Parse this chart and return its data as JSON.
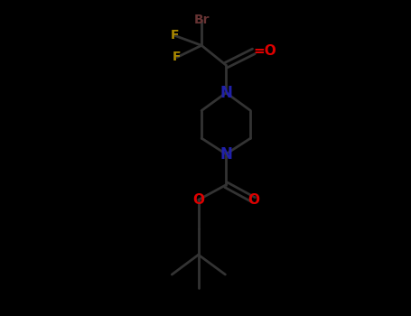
{
  "bg_color": "#000000",
  "bond_color": "#333333",
  "N_color": "#2020aa",
  "O_color": "#dd0000",
  "F_color": "#aa8800",
  "Br_color": "#663333",
  "bond_lw": 2.0,
  "figsize": [
    4.55,
    3.5
  ],
  "dpi": 100,
  "xlim": [
    -2.5,
    2.5
  ],
  "ylim": [
    -4.2,
    3.8
  ],
  "fs": 10
}
